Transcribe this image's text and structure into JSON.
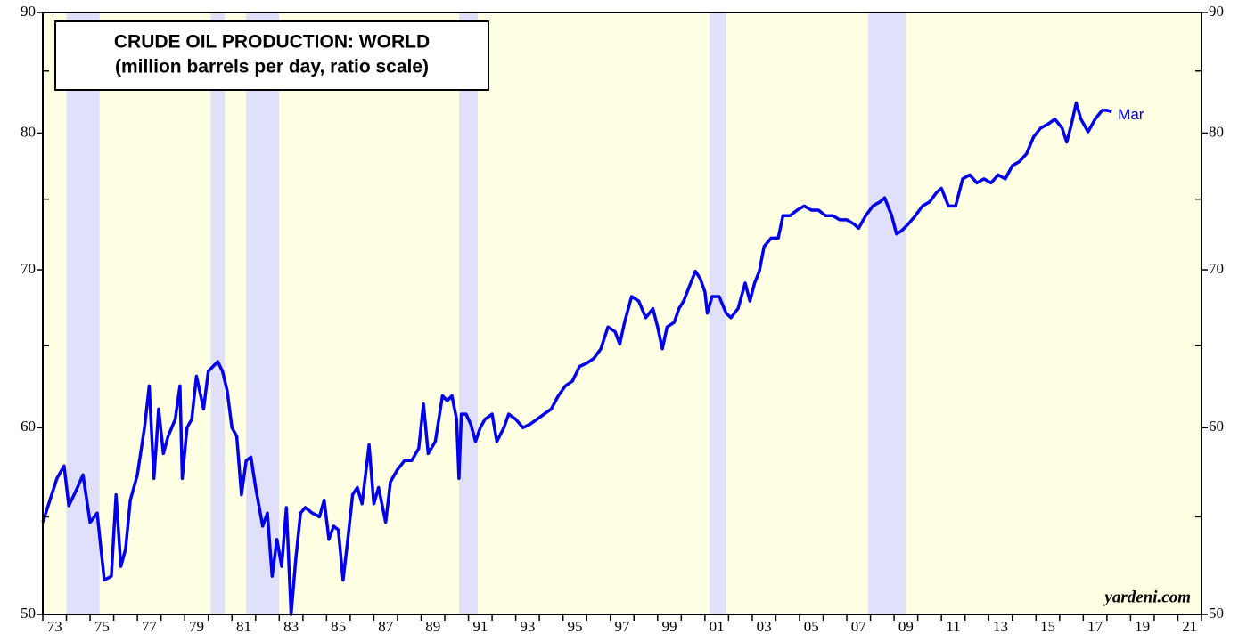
{
  "chart_data": {
    "type": "line",
    "title": "CRUDE OIL PRODUCTION: WORLD",
    "subtitle": "(million barrels per day, ratio scale)",
    "annotation": "Mar",
    "source": "yardeni.com",
    "color": "#0000ee",
    "log_scale": true,
    "xlim": [
      1973,
      2022
    ],
    "ylim": [
      50,
      90
    ],
    "yticks": [
      50,
      60,
      70,
      80,
      90
    ],
    "yminorticks": [
      55,
      65,
      75,
      85
    ],
    "xticks": [
      {
        "value": 1973,
        "label": "73"
      },
      {
        "value": 1975,
        "label": "75"
      },
      {
        "value": 1977,
        "label": "77"
      },
      {
        "value": 1979,
        "label": "79"
      },
      {
        "value": 1981,
        "label": "81"
      },
      {
        "value": 1983,
        "label": "83"
      },
      {
        "value": 1985,
        "label": "85"
      },
      {
        "value": 1987,
        "label": "87"
      },
      {
        "value": 1989,
        "label": "89"
      },
      {
        "value": 1991,
        "label": "91"
      },
      {
        "value": 1993,
        "label": "93"
      },
      {
        "value": 1995,
        "label": "95"
      },
      {
        "value": 1997,
        "label": "97"
      },
      {
        "value": 1999,
        "label": "99"
      },
      {
        "value": 2001,
        "label": "01"
      },
      {
        "value": 2003,
        "label": "03"
      },
      {
        "value": 2005,
        "label": "05"
      },
      {
        "value": 2007,
        "label": "07"
      },
      {
        "value": 2009,
        "label": "09"
      },
      {
        "value": 2011,
        "label": "11"
      },
      {
        "value": 2013,
        "label": "13"
      },
      {
        "value": 2015,
        "label": "15"
      },
      {
        "value": 2017,
        "label": "17"
      },
      {
        "value": 2019,
        "label": "19"
      },
      {
        "value": 2021,
        "label": "21"
      }
    ],
    "xminorticks": [
      1974,
      1976,
      1978,
      1980,
      1982,
      1984,
      1986,
      1988,
      1990,
      1992,
      1994,
      1996,
      1998,
      2000,
      2002,
      2004,
      2006,
      2008,
      2010,
      2012,
      2014,
      2016,
      2018,
      2020,
      2022
    ],
    "recession_color": "#e0e0fa",
    "background_color": "#ffffe3",
    "recessions": [
      [
        1974.0,
        1975.4
      ],
      [
        1980.1,
        1980.7
      ],
      [
        1981.6,
        1983.0
      ],
      [
        1990.6,
        1991.4
      ],
      [
        2001.2,
        2001.9
      ],
      [
        2007.9,
        2009.5
      ]
    ],
    "x": [
      1973.0,
      1973.3,
      1973.6,
      1973.9,
      1974.1,
      1974.4,
      1974.7,
      1975.0,
      1975.3,
      1975.6,
      1975.9,
      1976.1,
      1976.3,
      1976.5,
      1976.7,
      1977.0,
      1977.3,
      1977.5,
      1977.7,
      1977.9,
      1978.1,
      1978.3,
      1978.6,
      1978.8,
      1978.9,
      1979.1,
      1979.3,
      1979.5,
      1979.8,
      1980.0,
      1980.2,
      1980.4,
      1980.6,
      1980.8,
      1981.0,
      1981.2,
      1981.4,
      1981.6,
      1981.8,
      1982.0,
      1982.3,
      1982.5,
      1982.7,
      1982.9,
      1983.1,
      1983.3,
      1983.5,
      1983.7,
      1983.9,
      1984.1,
      1984.4,
      1984.7,
      1984.9,
      1985.1,
      1985.3,
      1985.5,
      1985.7,
      1985.9,
      1986.1,
      1986.3,
      1986.5,
      1986.8,
      1987.0,
      1987.2,
      1987.5,
      1987.7,
      1988.0,
      1988.3,
      1988.6,
      1988.9,
      1989.1,
      1989.3,
      1989.6,
      1989.9,
      1990.1,
      1990.3,
      1990.5,
      1990.6,
      1990.7,
      1990.9,
      1991.1,
      1991.3,
      1991.5,
      1991.7,
      1992.0,
      1992.2,
      1992.5,
      1992.7,
      1993.0,
      1993.3,
      1993.6,
      1993.9,
      1994.2,
      1994.5,
      1994.8,
      1995.1,
      1995.4,
      1995.7,
      1996.0,
      1996.3,
      1996.6,
      1996.9,
      1997.2,
      1997.4,
      1997.6,
      1997.9,
      1998.2,
      1998.5,
      1998.8,
      1999.0,
      1999.2,
      1999.4,
      1999.7,
      1999.9,
      2000.1,
      2000.4,
      2000.6,
      2000.8,
      2001.0,
      2001.1,
      2001.3,
      2001.6,
      2001.9,
      2002.1,
      2002.4,
      2002.7,
      2002.9,
      2003.1,
      2003.3,
      2003.5,
      2003.8,
      2004.1,
      2004.3,
      2004.6,
      2004.9,
      2005.2,
      2005.5,
      2005.8,
      2006.1,
      2006.4,
      2006.7,
      2007.0,
      2007.3,
      2007.5,
      2007.8,
      2008.1,
      2008.4,
      2008.6,
      2008.9,
      2009.1,
      2009.3,
      2009.6,
      2009.9,
      2010.2,
      2010.5,
      2010.8,
      2011.0,
      2011.3,
      2011.6,
      2011.9,
      2012.2,
      2012.5,
      2012.8,
      2013.1,
      2013.4,
      2013.7,
      2014.0,
      2014.3,
      2014.6,
      2014.9,
      2015.2,
      2015.5,
      2015.8,
      2016.1,
      2016.3,
      2016.5,
      2016.7,
      2016.9,
      2017.2,
      2017.5,
      2017.8,
      2018.0,
      2018.2
    ],
    "values": [
      54.7,
      55.9,
      57.1,
      57.8,
      55.6,
      56.4,
      57.3,
      54.7,
      55.2,
      51.7,
      51.9,
      56.2,
      52.4,
      53.3,
      55.9,
      57.3,
      60,
      62.5,
      57.1,
      61.1,
      58.5,
      59.5,
      60.5,
      62.5,
      57.1,
      60,
      60.5,
      63.1,
      61.1,
      63.4,
      63.7,
      64.0,
      63.4,
      62.2,
      60,
      59.5,
      56.2,
      58.1,
      58.3,
      56.6,
      54.5,
      55.2,
      51.9,
      53.8,
      52.4,
      55.5,
      50,
      52.8,
      55.2,
      55.5,
      55.2,
      55,
      55.9,
      53.8,
      54.5,
      54.3,
      51.7,
      53.8,
      56.2,
      56.6,
      55.7,
      59,
      55.7,
      56.6,
      54.7,
      56.9,
      57.6,
      58.1,
      58.1,
      58.8,
      61.4,
      58.5,
      59.2,
      61.9,
      61.6,
      61.9,
      60.5,
      57.1,
      60.8,
      60.8,
      60.2,
      59.2,
      60,
      60.5,
      60.8,
      59.2,
      60,
      60.8,
      60.5,
      60,
      60.2,
      60.5,
      60.8,
      61.1,
      61.9,
      62.5,
      62.8,
      63.7,
      63.9,
      64.2,
      64.8,
      66.2,
      65.9,
      65.1,
      66.5,
      68.2,
      67.9,
      66.8,
      67.4,
      66.2,
      64.8,
      66.2,
      66.5,
      67.4,
      67.9,
      69.1,
      69.9,
      69.4,
      68.5,
      67.1,
      68.2,
      68.2,
      67.1,
      66.8,
      67.4,
      69.1,
      67.9,
      69.1,
      69.9,
      71.6,
      72.2,
      72.2,
      73.8,
      73.8,
      74.2,
      74.5,
      74.2,
      74.2,
      73.8,
      73.8,
      73.5,
      73.5,
      73.2,
      72.9,
      73.8,
      74.5,
      74.8,
      75.1,
      73.8,
      72.5,
      72.7,
      73.2,
      73.8,
      74.5,
      74.8,
      75.5,
      75.8,
      74.5,
      74.5,
      76.5,
      76.8,
      76.2,
      76.5,
      76.2,
      76.8,
      76.5,
      77.5,
      77.8,
      78.4,
      79.7,
      80.4,
      80.7,
      81.1,
      80.4,
      79.3,
      80.7,
      82.4,
      81.1,
      80.1,
      81.1,
      81.8,
      81.8,
      81.7
    ]
  }
}
